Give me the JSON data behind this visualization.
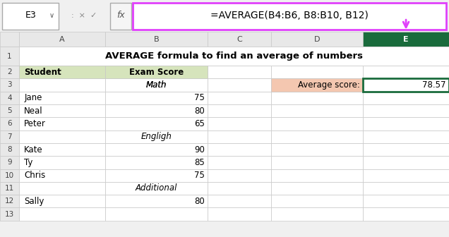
{
  "title": "AVERAGE formula to find an average of numbers",
  "formula_bar_cell": "E3",
  "formula_bar_formula": "=AVERAGE(B4:B6, B8:B10, B12)",
  "col_labels": [
    "A",
    "B",
    "C",
    "D",
    "E"
  ],
  "header_bg": "#d6e4bc",
  "avg_label_bg": "#f4c7b0",
  "avg_border_color": "#1a6b3c",
  "formula_border_color": "#e040fb",
  "arrow_color": "#e040fb",
  "grid_color": "#c8c8c8",
  "col_header_color": "#e8e8e8",
  "row_header_color": "#e8e8e8",
  "selected_col_header_bg": "#1a6b3c",
  "selected_col_header_text": "#ffffff",
  "formula_bar_bg": "#f0f0f0",
  "n_rows": 13,
  "students": [
    [
      3,
      "Jane",
      "75",
      false
    ],
    [
      4,
      "Neal",
      "80",
      false
    ],
    [
      5,
      "Peter",
      "65",
      false
    ],
    [
      7,
      "Kate",
      "90",
      false
    ],
    [
      8,
      "Ty",
      "85",
      false
    ],
    [
      9,
      "Chris",
      "75",
      false
    ],
    [
      11,
      "Sally",
      "80",
      false
    ]
  ],
  "section_rows": [
    [
      2,
      "Math"
    ],
    [
      6,
      "Engligh"
    ],
    [
      10,
      "Additional"
    ]
  ],
  "avg_value": "78.57"
}
